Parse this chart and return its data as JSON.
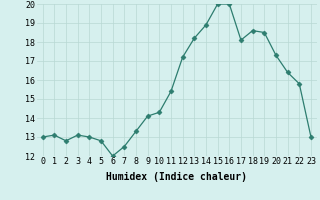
{
  "x": [
    0,
    1,
    2,
    3,
    4,
    5,
    6,
    7,
    8,
    9,
    10,
    11,
    12,
    13,
    14,
    15,
    16,
    17,
    18,
    19,
    20,
    21,
    22,
    23
  ],
  "y": [
    13,
    13.1,
    12.8,
    13.1,
    13.0,
    12.8,
    12.0,
    12.5,
    13.3,
    14.1,
    14.3,
    15.4,
    17.2,
    18.2,
    18.9,
    20.0,
    20.0,
    18.1,
    18.6,
    18.5,
    17.3,
    16.4,
    15.8,
    13.0
  ],
  "line_color": "#2d7d6f",
  "marker": "D",
  "marker_size": 2.5,
  "bg_color": "#d6f0ee",
  "grid_color": "#b8d8d4",
  "xlabel": "Humidex (Indice chaleur)",
  "ylim": [
    12,
    20
  ],
  "xlim": [
    -0.5,
    23.5
  ],
  "yticks": [
    12,
    13,
    14,
    15,
    16,
    17,
    18,
    19,
    20
  ],
  "xticks": [
    0,
    1,
    2,
    3,
    4,
    5,
    6,
    7,
    8,
    9,
    10,
    11,
    12,
    13,
    14,
    15,
    16,
    17,
    18,
    19,
    20,
    21,
    22,
    23
  ],
  "axis_fontsize": 6.5,
  "tick_fontsize": 6.0,
  "xlabel_fontsize": 7.0
}
